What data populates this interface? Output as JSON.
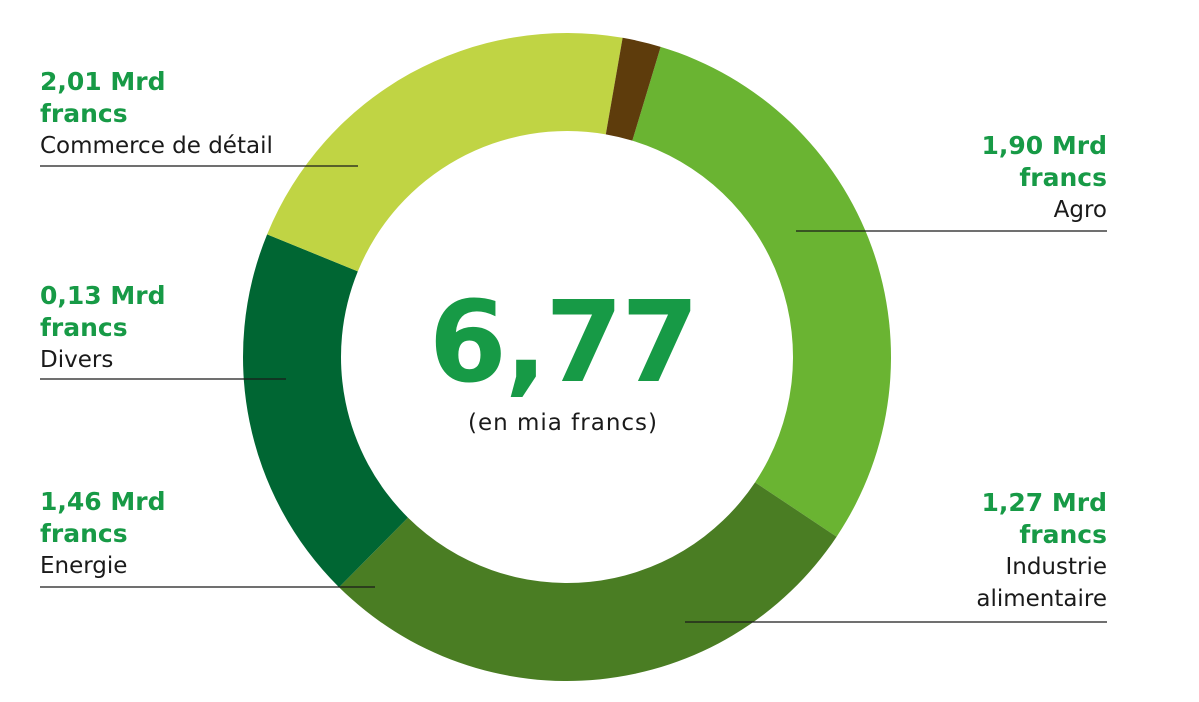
{
  "chart_data": {
    "type": "pie",
    "variant": "donut",
    "total": "6,77",
    "total_unit": "(en mia francs)",
    "slices": [
      {
        "category": "Commerce de détail",
        "value": 2.01,
        "value_label": "2,01 Mrd francs",
        "color": "#6ab432"
      },
      {
        "category": "Agro",
        "value": 1.9,
        "value_label": "1,90 Mrd francs",
        "color": "#4a7d23"
      },
      {
        "category": "Industrie\nalimentaire",
        "value": 1.27,
        "value_label": "1,27 Mrd francs",
        "color": "#006633"
      },
      {
        "category": "Energie",
        "value": 1.46,
        "value_label": "1,46 Mrd francs",
        "color": "#c0d444"
      },
      {
        "category": "Divers",
        "value": 0.13,
        "value_label": "0,13 Mrd francs",
        "color": "#5e3c0c"
      }
    ]
  }
}
